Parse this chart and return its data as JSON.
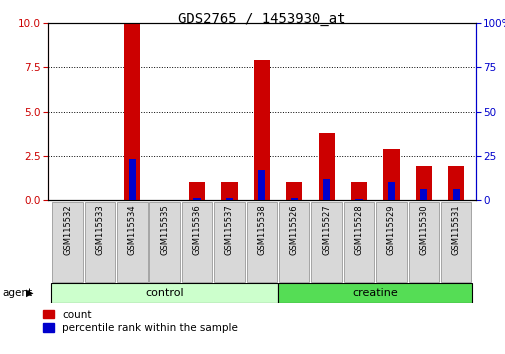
{
  "title": "GDS2765 / 1453930_at",
  "categories": [
    "GSM115532",
    "GSM115533",
    "GSM115534",
    "GSM115535",
    "GSM115536",
    "GSM115537",
    "GSM115538",
    "GSM115526",
    "GSM115527",
    "GSM115528",
    "GSM115529",
    "GSM115530",
    "GSM115531"
  ],
  "count_values": [
    0,
    0,
    10.0,
    0,
    1.0,
    1.0,
    7.9,
    1.0,
    3.8,
    1.0,
    2.9,
    1.9,
    1.9
  ],
  "percentile_values": [
    0,
    0,
    23,
    0,
    1,
    1,
    17,
    1,
    12,
    0.5,
    10,
    6,
    6
  ],
  "ylim_left": [
    0,
    10
  ],
  "ylim_right": [
    0,
    100
  ],
  "yticks_left": [
    0,
    2.5,
    5.0,
    7.5,
    10
  ],
  "yticks_right": [
    0,
    25,
    50,
    75,
    100
  ],
  "yticklabels_right": [
    "0",
    "25",
    "50",
    "75",
    "100%"
  ],
  "bar_color_red": "#cc0000",
  "bar_color_blue": "#0000cc",
  "control_color": "#ccffcc",
  "creatine_color": "#55dd55",
  "tick_color_left": "#cc0000",
  "tick_color_right": "#0000cc",
  "bg_color": "#d8d8d8",
  "bar_width": 0.5,
  "n_control": 7,
  "n_creatine": 6
}
